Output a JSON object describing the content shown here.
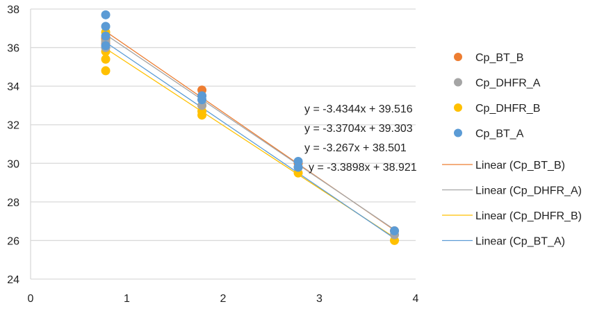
{
  "chart_data": {
    "type": "scatter",
    "xlim": [
      0,
      4
    ],
    "ylim": [
      24,
      38
    ],
    "x_ticks": [
      "0",
      "1",
      "2",
      "3",
      "4"
    ],
    "y_ticks": [
      "24",
      "26",
      "28",
      "30",
      "32",
      "34",
      "36",
      "38"
    ],
    "grid": "horizontal",
    "legend_position": "right",
    "series": [
      {
        "name": "Cp_BT_B",
        "color": "#ED7D31",
        "points": [
          [
            0.78,
            36.5
          ],
          [
            0.78,
            36.2
          ],
          [
            1.78,
            33.8
          ],
          [
            1.78,
            33.5
          ],
          [
            2.78,
            30.0
          ],
          [
            3.78,
            26.5
          ]
        ],
        "trendline": {
          "label": "Linear (Cp_BT_B)",
          "slope": -3.4344,
          "intercept": 39.516,
          "equation": "y = -3.4344x + 39.516"
        }
      },
      {
        "name": "Cp_DHFR_A",
        "color": "#A5A5A5",
        "points": [
          [
            0.78,
            36.3
          ],
          [
            0.78,
            36.0
          ],
          [
            1.78,
            33.0
          ],
          [
            2.78,
            29.8
          ],
          [
            3.78,
            26.3
          ]
        ],
        "trendline": {
          "label": "Linear (Cp_DHFR_A)",
          "slope": -3.3704,
          "intercept": 39.303,
          "equation": "y = -3.3704x + 39.303"
        }
      },
      {
        "name": "Cp_DHFR_B",
        "color": "#FFC000",
        "points": [
          [
            0.78,
            36.8
          ],
          [
            0.78,
            36.4
          ],
          [
            0.78,
            35.8
          ],
          [
            0.78,
            35.4
          ],
          [
            0.78,
            34.8
          ],
          [
            1.78,
            33.0
          ],
          [
            1.78,
            32.7
          ],
          [
            1.78,
            32.5
          ],
          [
            2.78,
            29.5
          ],
          [
            3.78,
            26.0
          ]
        ],
        "trendline": {
          "label": "Linear (Cp_DHFR_B)",
          "slope": -3.267,
          "intercept": 38.501,
          "equation": "y = -3.267x + 38.501"
        }
      },
      {
        "name": "Cp_BT_A",
        "color": "#5B9BD5",
        "points": [
          [
            0.78,
            37.7
          ],
          [
            0.78,
            37.1
          ],
          [
            0.78,
            36.6
          ],
          [
            0.78,
            36.1
          ],
          [
            1.78,
            33.5
          ],
          [
            1.78,
            33.3
          ],
          [
            2.78,
            30.1
          ],
          [
            2.78,
            29.8
          ],
          [
            3.78,
            26.5
          ]
        ],
        "trendline": {
          "label": "Linear (Cp_BT_A)",
          "slope": -3.3898,
          "intercept": 38.921,
          "equation": "y = -3.3898x + 38.921"
        }
      }
    ]
  }
}
